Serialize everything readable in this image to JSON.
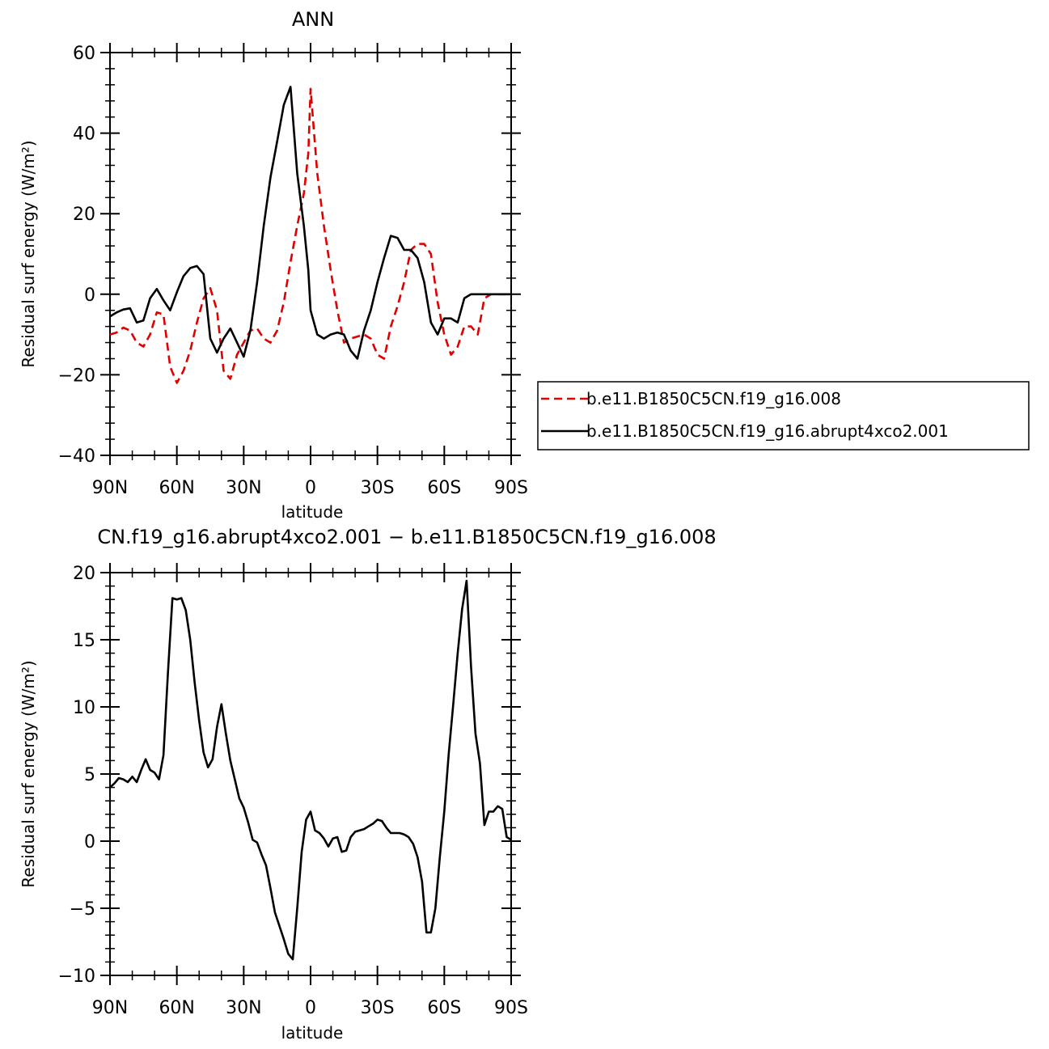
{
  "chart_data": [
    {
      "type": "line",
      "title": "ANN",
      "xlabel": "latitude",
      "ylabel": "Residual surf energy (W/m²)",
      "xlim": [
        90,
        -90
      ],
      "ylim": [
        -40,
        60
      ],
      "y_ticks": [
        -40,
        -20,
        0,
        20,
        40,
        60
      ],
      "y_tick_labels": [
        "−40",
        "−20",
        "0",
        "20",
        "40",
        "60"
      ],
      "x_ticks": [
        90,
        60,
        30,
        0,
        -30,
        -60,
        -90
      ],
      "x_tick_labels": [
        "90N",
        "60N",
        "30N",
        "0",
        "30S",
        "60S",
        "90S"
      ],
      "grid": false,
      "legend_position": "right",
      "series": [
        {
          "name": "b.e11.B1850C5CN.f19_g16.008",
          "color": "#e00000",
          "dash": "dashed",
          "x": [
            90,
            87,
            84,
            81,
            78,
            75,
            72,
            69,
            66,
            63,
            60,
            57,
            54,
            51,
            48,
            45,
            42,
            39,
            36,
            33,
            30,
            27,
            24,
            21,
            18,
            15,
            12,
            9,
            6,
            3,
            1,
            0,
            -3,
            -6,
            -9,
            -12,
            -15,
            -18,
            -21,
            -24,
            -27,
            -30,
            -33,
            -36,
            -39,
            -42,
            -45,
            -48,
            -51,
            -54,
            -57,
            -60,
            -63,
            -66,
            -69,
            -72,
            -75,
            -78,
            -81,
            -84,
            -87,
            -90
          ],
          "y": [
            -10,
            -9.5,
            -8.3,
            -9,
            -12,
            -13,
            -10,
            -4.5,
            -5,
            -18,
            -22,
            -19,
            -14,
            -7,
            -1,
            1.5,
            -4,
            -19,
            -21,
            -15,
            -12,
            -9,
            -8.5,
            -11,
            -12,
            -9,
            -2,
            8,
            17,
            25,
            35,
            51,
            30,
            17,
            6,
            -4,
            -12,
            -11,
            -10.5,
            -10,
            -11,
            -15,
            -16,
            -8,
            -3,
            3,
            11,
            12.5,
            12.5,
            10,
            -2,
            -10,
            -15,
            -13,
            -8,
            -8,
            -10,
            -1,
            0,
            0,
            0,
            0
          ]
        },
        {
          "name": "b.e11.B1850C5CN.f19_g16.abrupt4xco2.001",
          "color": "#000000",
          "dash": "solid",
          "x": [
            90,
            87,
            84,
            81,
            78,
            75,
            72,
            69,
            66,
            63,
            60,
            57,
            54,
            51,
            48,
            45,
            42,
            39,
            36,
            33,
            30,
            27,
            24,
            21,
            18,
            15,
            12,
            9,
            6,
            3,
            1,
            0,
            -3,
            -6,
            -9,
            -12,
            -15,
            -18,
            -21,
            -24,
            -27,
            -30,
            -33,
            -36,
            -39,
            -42,
            -45,
            -48,
            -51,
            -54,
            -57,
            -60,
            -63,
            -66,
            -69,
            -72,
            -75,
            -78,
            -81,
            -84,
            -87,
            -90
          ],
          "y": [
            -5.5,
            -4.5,
            -3.8,
            -3.5,
            -7,
            -6.5,
            -1,
            1.3,
            -1.5,
            -4,
            0.5,
            4.5,
            6.5,
            7,
            5,
            -11,
            -14.5,
            -11,
            -8.5,
            -12,
            -15.5,
            -9,
            3,
            17,
            29,
            38,
            47,
            51.5,
            30,
            17,
            6,
            -4,
            -10,
            -11,
            -10,
            -9.5,
            -10,
            -14,
            -16,
            -9,
            -4,
            3,
            9,
            14.5,
            14,
            11,
            11,
            9,
            3,
            -7,
            -10,
            -6,
            -6,
            -7,
            -1,
            0,
            0,
            0,
            0,
            0,
            0,
            0
          ]
        }
      ]
    },
    {
      "type": "line",
      "title": "CN.f19_g16.abrupt4xco2.001 − b.e11.B1850C5CN.f19_g16.008",
      "xlabel": "latitude",
      "ylabel": "Residual surf energy (W/m²)",
      "xlim": [
        90,
        -90
      ],
      "ylim": [
        -10,
        20
      ],
      "y_ticks": [
        -10,
        -5,
        0,
        5,
        10,
        15,
        20
      ],
      "y_tick_labels": [
        "−10",
        "−5",
        "0",
        "5",
        "10",
        "15",
        "20"
      ],
      "x_ticks": [
        90,
        60,
        30,
        0,
        -30,
        -60,
        -90
      ],
      "x_tick_labels": [
        "90N",
        "60N",
        "30N",
        "0",
        "30S",
        "60S",
        "90S"
      ],
      "grid": false,
      "series": [
        {
          "color": "#000000",
          "dash": "solid",
          "x": [
            90,
            88,
            86,
            84,
            82,
            80,
            78,
            76,
            74,
            72,
            70,
            68,
            66,
            64,
            62,
            60,
            58,
            56,
            54,
            52,
            50,
            48,
            46,
            44,
            42,
            40,
            38,
            36,
            34,
            32,
            30,
            28,
            26,
            24,
            22,
            20,
            18,
            16,
            14,
            12,
            10,
            8,
            6,
            4,
            2,
            0,
            -2,
            -4,
            -6,
            -8,
            -10,
            -12,
            -14,
            -16,
            -18,
            -20,
            -22,
            -24,
            -26,
            -28,
            -30,
            -32,
            -34,
            -36,
            -38,
            -40,
            -42,
            -44,
            -46,
            -48,
            -50,
            -52,
            -54,
            -56,
            -58,
            -60,
            -62,
            -64,
            -66,
            -68,
            -70,
            -72,
            -74,
            -76,
            -78,
            -80,
            -82,
            -84,
            -86,
            -88,
            -90
          ],
          "y": [
            4,
            4.3,
            4.7,
            4.6,
            4.4,
            4.8,
            4.4,
            5.3,
            6.1,
            5.3,
            5.1,
            4.6,
            6.4,
            12.5,
            18.1,
            18.0,
            18.1,
            17.2,
            15.0,
            11.8,
            9.0,
            6.6,
            5.5,
            6.1,
            8.5,
            10.2,
            8.0,
            6.0,
            4.6,
            3.2,
            2.5,
            1.4,
            0.1,
            -0.1,
            -1.0,
            -1.8,
            -3.5,
            -5.3,
            -6.3,
            -7.3,
            -8.4,
            -8.8,
            -5.0,
            -0.8,
            1.6,
            2.2,
            0.8,
            0.6,
            0.2,
            -0.4,
            0.2,
            0.3,
            -0.8,
            -0.7,
            0.3,
            0.7,
            0.8,
            0.9,
            1.1,
            1.3,
            1.6,
            1.5,
            1.0,
            0.6,
            0.6,
            0.6,
            0.5,
            0.3,
            -0.2,
            -1.2,
            -3.0,
            -6.8,
            -6.8,
            -5.0,
            -1.2,
            2.2,
            6.5,
            10.2,
            14.0,
            17.3,
            19.4,
            13.0,
            8.0,
            5.8,
            1.2,
            2.2,
            2.2,
            2.6,
            2.4,
            0.3,
            0.1
          ]
        }
      ]
    }
  ]
}
